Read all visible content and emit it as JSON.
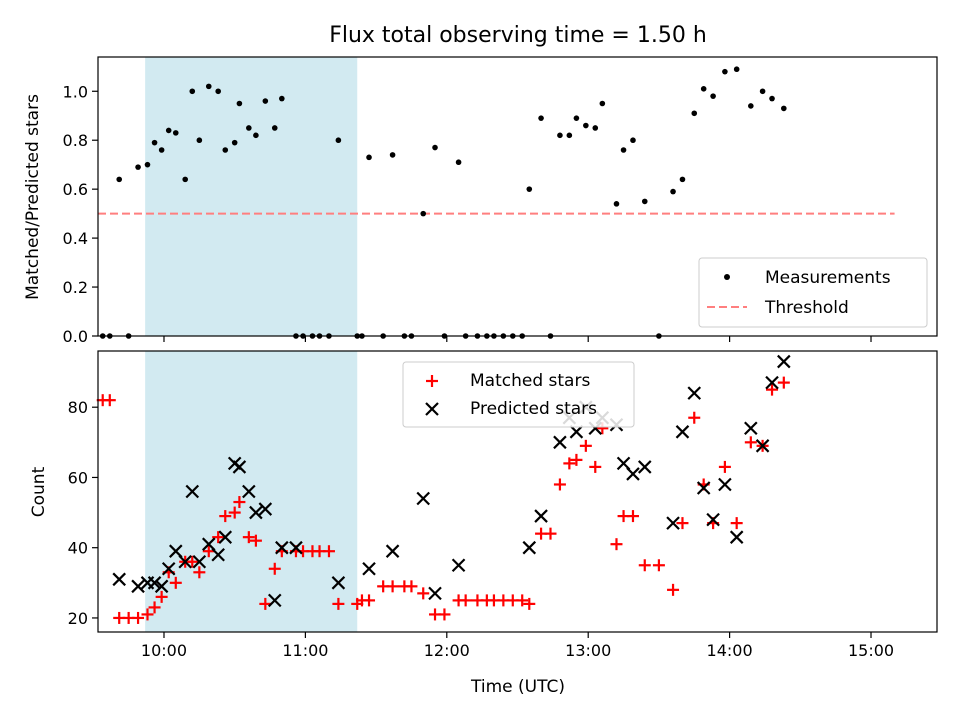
{
  "chart_data": {
    "title": "Flux total observing time = 1.50 h",
    "shared_x": {
      "label": "Time (UTC)",
      "range": [
        "09:32",
        "15:28"
      ],
      "ticks": [
        "10:00",
        "11:00",
        "12:00",
        "13:00",
        "14:00",
        "15:00"
      ]
    },
    "highlight_span": {
      "start": "09:52",
      "end": "11:22",
      "color": "#add8e6"
    },
    "panels": [
      {
        "type": "scatter",
        "ylabel": "Matched/Predicted stars",
        "ylim": [
          0,
          1.14
        ],
        "yticks": [
          "0.0",
          "0.2",
          "0.4",
          "0.6",
          "0.8",
          "1.0"
        ],
        "legend_position": "bottom-right",
        "threshold": {
          "name": "Threshold",
          "value": 0.5,
          "start": "09:32",
          "end": "15:10",
          "color": "#ff7f7f"
        },
        "series": [
          {
            "name": "Measurements",
            "color": "#000000",
            "points": [
              [
                "09:34",
                0
              ],
              [
                "09:37",
                0
              ],
              [
                "09:41",
                0.64
              ],
              [
                "09:45",
                0
              ],
              [
                "09:49",
                0.69
              ],
              [
                "09:53",
                0.7
              ],
              [
                "09:56",
                0.79
              ],
              [
                "09:59",
                0.76
              ],
              [
                "10:02",
                0.84
              ],
              [
                "10:05",
                0.83
              ],
              [
                "10:09",
                0.64
              ],
              [
                "10:12",
                1.0
              ],
              [
                "10:15",
                0.8
              ],
              [
                "10:19",
                1.02
              ],
              [
                "10:23",
                1.0
              ],
              [
                "10:26",
                0.76
              ],
              [
                "10:30",
                0.79
              ],
              [
                "10:32",
                0.95
              ],
              [
                "10:36",
                0.85
              ],
              [
                "10:39",
                0.82
              ],
              [
                "10:43",
                0.96
              ],
              [
                "10:47",
                0.85
              ],
              [
                "10:50",
                0.97
              ],
              [
                "10:56",
                0
              ],
              [
                "10:59",
                0
              ],
              [
                "11:03",
                0
              ],
              [
                "11:06",
                0
              ],
              [
                "11:10",
                0
              ],
              [
                "11:14",
                0.8
              ],
              [
                "11:22",
                0
              ],
              [
                "11:24",
                0
              ],
              [
                "11:27",
                0.73
              ],
              [
                "11:33",
                0
              ],
              [
                "11:37",
                0.74
              ],
              [
                "11:42",
                0
              ],
              [
                "11:45",
                0
              ],
              [
                "11:50",
                0.5
              ],
              [
                "11:55",
                0.77
              ],
              [
                "11:59",
                0
              ],
              [
                "12:05",
                0.71
              ],
              [
                "12:08",
                0
              ],
              [
                "12:13",
                0
              ],
              [
                "12:17",
                0
              ],
              [
                "12:20",
                0
              ],
              [
                "12:24",
                0
              ],
              [
                "12:28",
                0
              ],
              [
                "12:32",
                0
              ],
              [
                "12:35",
                0.6
              ],
              [
                "12:40",
                0.89
              ],
              [
                "12:44",
                0
              ],
              [
                "12:48",
                0.82
              ],
              [
                "12:52",
                0.82
              ],
              [
                "12:55",
                0.89
              ],
              [
                "12:59",
                0.86
              ],
              [
                "13:03",
                0.85
              ],
              [
                "13:06",
                0.95
              ],
              [
                "13:12",
                0.54
              ],
              [
                "13:15",
                0.76
              ],
              [
                "13:19",
                0.8
              ],
              [
                "13:24",
                0.55
              ],
              [
                "13:30",
                0
              ],
              [
                "13:36",
                0.59
              ],
              [
                "13:40",
                0.64
              ],
              [
                "13:45",
                0.91
              ],
              [
                "13:49",
                1.01
              ],
              [
                "13:53",
                0.98
              ],
              [
                "13:58",
                1.08
              ],
              [
                "14:03",
                1.09
              ],
              [
                "14:09",
                0.94
              ],
              [
                "14:14",
                1.0
              ],
              [
                "14:18",
                0.97
              ],
              [
                "14:23",
                0.93
              ]
            ]
          }
        ]
      },
      {
        "type": "scatter",
        "ylabel": "Count",
        "ylim": [
          16,
          96
        ],
        "yticks": [
          "20",
          "40",
          "60",
          "80"
        ],
        "legend_position": "top-center",
        "series": [
          {
            "name": "Matched stars",
            "color": "#ff0000",
            "points": [
              [
                "09:34",
                82
              ],
              [
                "09:37",
                82
              ],
              [
                "09:41",
                20
              ],
              [
                "09:45",
                20
              ],
              [
                "09:49",
                20
              ],
              [
                "09:53",
                21
              ],
              [
                "09:56",
                23
              ],
              [
                "09:59",
                26
              ],
              [
                "10:02",
                33
              ],
              [
                "10:05",
                30
              ],
              [
                "10:09",
                36
              ],
              [
                "10:12",
                36
              ],
              [
                "10:15",
                33
              ],
              [
                "10:19",
                39
              ],
              [
                "10:23",
                43
              ],
              [
                "10:26",
                49
              ],
              [
                "10:30",
                50
              ],
              [
                "10:32",
                53
              ],
              [
                "10:36",
                43
              ],
              [
                "10:39",
                42
              ],
              [
                "10:43",
                24
              ],
              [
                "10:47",
                34
              ],
              [
                "10:50",
                39
              ],
              [
                "10:56",
                39
              ],
              [
                "10:59",
                39
              ],
              [
                "11:03",
                39
              ],
              [
                "11:06",
                39
              ],
              [
                "11:10",
                39
              ],
              [
                "11:14",
                24
              ],
              [
                "11:22",
                24
              ],
              [
                "11:24",
                25
              ],
              [
                "11:27",
                25
              ],
              [
                "11:33",
                29
              ],
              [
                "11:37",
                29
              ],
              [
                "11:42",
                29
              ],
              [
                "11:45",
                29
              ],
              [
                "11:50",
                27
              ],
              [
                "11:55",
                21
              ],
              [
                "11:59",
                21
              ],
              [
                "12:05",
                25
              ],
              [
                "12:08",
                25
              ],
              [
                "12:13",
                25
              ],
              [
                "12:17",
                25
              ],
              [
                "12:20",
                25
              ],
              [
                "12:24",
                25
              ],
              [
                "12:28",
                25
              ],
              [
                "12:32",
                25
              ],
              [
                "12:35",
                24
              ],
              [
                "12:40",
                44
              ],
              [
                "12:44",
                44
              ],
              [
                "12:48",
                58
              ],
              [
                "12:52",
                64
              ],
              [
                "12:55",
                65
              ],
              [
                "12:59",
                69
              ],
              [
                "13:03",
                63
              ],
              [
                "13:06",
                74
              ],
              [
                "13:12",
                41
              ],
              [
                "13:15",
                49
              ],
              [
                "13:19",
                49
              ],
              [
                "13:24",
                35
              ],
              [
                "13:30",
                35
              ],
              [
                "13:36",
                28
              ],
              [
                "13:40",
                47
              ],
              [
                "13:45",
                77
              ],
              [
                "13:49",
                58
              ],
              [
                "13:53",
                47
              ],
              [
                "13:58",
                63
              ],
              [
                "14:03",
                47
              ],
              [
                "14:09",
                70
              ],
              [
                "14:14",
                69
              ],
              [
                "14:18",
                85
              ],
              [
                "14:23",
                87
              ]
            ]
          },
          {
            "name": "Predicted stars",
            "color": "#000000",
            "points": [
              [
                "09:41",
                31
              ],
              [
                "09:49",
                29
              ],
              [
                "09:53",
                30
              ],
              [
                "09:56",
                30
              ],
              [
                "09:59",
                29
              ],
              [
                "10:02",
                34
              ],
              [
                "10:05",
                39
              ],
              [
                "10:09",
                36
              ],
              [
                "10:12",
                56
              ],
              [
                "10:15",
                36
              ],
              [
                "10:19",
                41
              ],
              [
                "10:23",
                38
              ],
              [
                "10:26",
                43
              ],
              [
                "10:30",
                64
              ],
              [
                "10:32",
                63
              ],
              [
                "10:36",
                56
              ],
              [
                "10:39",
                50
              ],
              [
                "10:43",
                51
              ],
              [
                "10:47",
                25
              ],
              [
                "10:50",
                40
              ],
              [
                "10:56",
                40
              ],
              [
                "11:14",
                30
              ],
              [
                "11:27",
                34
              ],
              [
                "11:37",
                39
              ],
              [
                "11:50",
                54
              ],
              [
                "11:55",
                27
              ],
              [
                "12:05",
                35
              ],
              [
                "12:35",
                40
              ],
              [
                "12:40",
                49
              ],
              [
                "12:48",
                70
              ],
              [
                "12:52",
                77
              ],
              [
                "12:55",
                73
              ],
              [
                "12:59",
                80
              ],
              [
                "13:03",
                74
              ],
              [
                "13:06",
                77
              ],
              [
                "13:12",
                75
              ],
              [
                "13:15",
                64
              ],
              [
                "13:19",
                61
              ],
              [
                "13:24",
                63
              ],
              [
                "13:36",
                47
              ],
              [
                "13:40",
                73
              ],
              [
                "13:45",
                84
              ],
              [
                "13:49",
                57
              ],
              [
                "13:53",
                48
              ],
              [
                "13:58",
                58
              ],
              [
                "14:03",
                43
              ],
              [
                "14:09",
                74
              ],
              [
                "14:14",
                69
              ],
              [
                "14:18",
                87
              ],
              [
                "14:23",
                93
              ]
            ]
          }
        ]
      }
    ]
  }
}
